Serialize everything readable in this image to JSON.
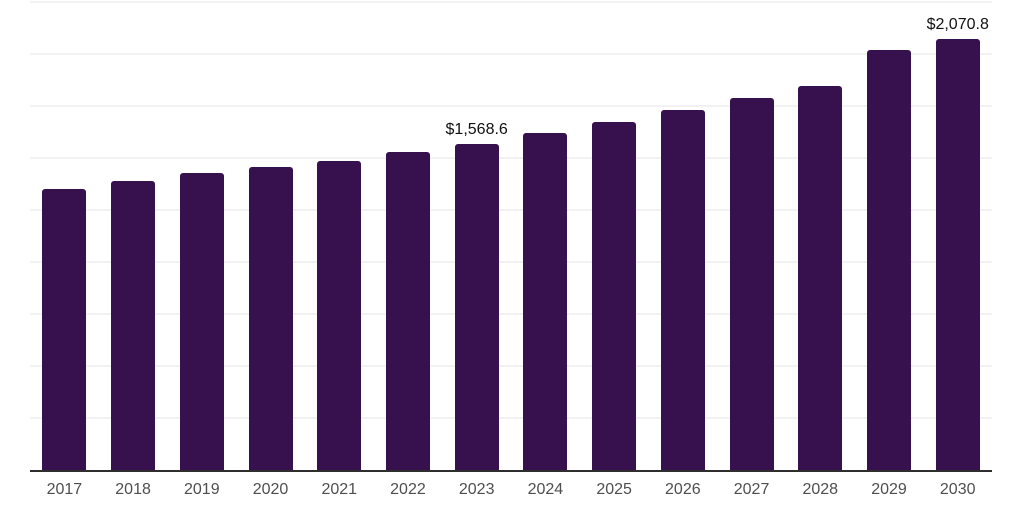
{
  "chart_data": {
    "type": "bar",
    "categories": [
      "2017",
      "2018",
      "2019",
      "2020",
      "2021",
      "2022",
      "2023",
      "2024",
      "2025",
      "2026",
      "2027",
      "2028",
      "2029",
      "2030"
    ],
    "values": [
      1350.8,
      1389.2,
      1427.5,
      1456.3,
      1485.1,
      1528.3,
      1568.6,
      1619.5,
      1672.3,
      1729.9,
      1787.4,
      1845.0,
      2019.7,
      2070.8
    ],
    "value_labels": [
      "",
      "",
      "",
      "",
      "",
      "",
      "$1,568.6",
      "",
      "",
      "",
      "",
      "",
      "",
      "$2,070.8"
    ],
    "title": "",
    "xlabel": "",
    "ylabel": "",
    "ylim": [
      0,
      2250
    ],
    "gridline_interval": 250,
    "grid": true,
    "legend": false,
    "colors": {
      "bar_fill": "#36114E",
      "axis_line": "#2e2e2e",
      "gridline": "#f2f2f2",
      "tick_label": "#4e4e4e",
      "value_label": "#111111",
      "background": "#ffffff"
    }
  }
}
